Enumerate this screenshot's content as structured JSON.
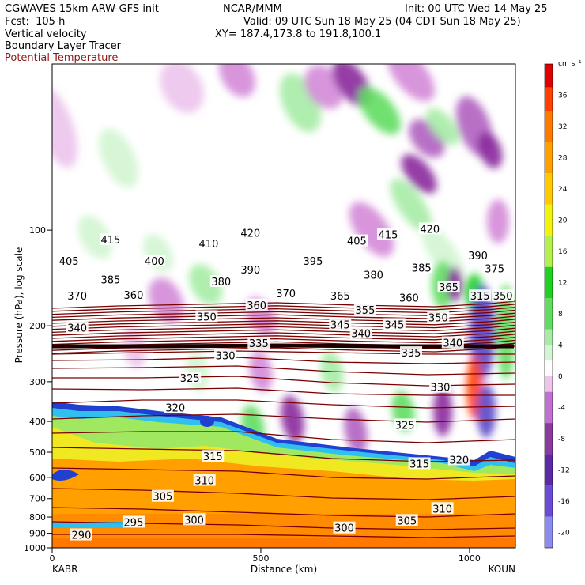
{
  "header": {
    "model": "CGWAVES 15km ARW-GFS init",
    "fcst": "Fcst:  105 h",
    "center": "NCAR/MMM",
    "init": "Init: 00 UTC Wed 14 May 25",
    "valid": "Valid: 09 UTC Sun 18 May 25 (04 CDT Sun 18 May 25)",
    "xy": "XY= 187.4,173.8 to 191.8,100.1",
    "field1": "Vertical velocity",
    "field2": "Boundary Layer Tracer",
    "field3": "Potential Temperature"
  },
  "colors": {
    "theta": "#7a0000",
    "pos_shading": [
      "#ffffff",
      "#d2f5d2",
      "#a6eca6",
      "#60dd60",
      "#1fd21f",
      "#b4f04b",
      "#f2f20f",
      "#ffc800",
      "#ffa000",
      "#ff7800",
      "#ff4000",
      "#e00000"
    ],
    "neg_shading": [
      "#ffffff",
      "#ecc4ec",
      "#d48ad8",
      "#b060c0",
      "#8a2a9c",
      "#6a1a88",
      "#5a46c8",
      "#8888ee"
    ]
  },
  "chart_data": {
    "type": "heatmap",
    "title": "Vertical velocity",
    "xlabel": "Distance (km)",
    "ylabel": "Pressure (hPa), log scale",
    "x_ticks": [
      0,
      500,
      1000
    ],
    "x_end_labels": {
      "left": "KABR",
      "right": "KOUN"
    },
    "xlim": [
      0,
      1110
    ],
    "y_ticks": [
      100,
      200,
      300,
      400,
      500,
      600,
      700,
      800,
      900,
      1000
    ],
    "ylim": [
      1000,
      30
    ],
    "y_scale": "log",
    "colorbar": {
      "units": "cm s⁻¹",
      "ticks": [
        36,
        32,
        28,
        24,
        20,
        16,
        12,
        8,
        4,
        0,
        -4,
        -8,
        -12,
        -16,
        -20
      ],
      "range": [
        -22,
        40
      ]
    },
    "theta_contour_labels": [
      {
        "label": "415",
        "x": 140,
        "p": 107
      },
      {
        "label": "410",
        "x": 375,
        "p": 110
      },
      {
        "label": "420",
        "x": 475,
        "p": 102
      },
      {
        "label": "405",
        "x": 730,
        "p": 108
      },
      {
        "label": "415",
        "x": 805,
        "p": 103
      },
      {
        "label": "420",
        "x": 905,
        "p": 99
      },
      {
        "label": "405",
        "x": 40,
        "p": 125
      },
      {
        "label": "400",
        "x": 245,
        "p": 125
      },
      {
        "label": "390",
        "x": 475,
        "p": 133
      },
      {
        "label": "395",
        "x": 625,
        "p": 125
      },
      {
        "label": "385",
        "x": 885,
        "p": 131
      },
      {
        "label": "390",
        "x": 1020,
        "p": 120
      },
      {
        "label": "375",
        "x": 1060,
        "p": 132
      },
      {
        "label": "385",
        "x": 140,
        "p": 143
      },
      {
        "label": "380",
        "x": 405,
        "p": 145
      },
      {
        "label": "380",
        "x": 770,
        "p": 138
      },
      {
        "label": "365",
        "x": 950,
        "p": 151
      },
      {
        "label": "370",
        "x": 60,
        "p": 161
      },
      {
        "label": "360",
        "x": 195,
        "p": 160
      },
      {
        "label": "370",
        "x": 560,
        "p": 158
      },
      {
        "label": "365",
        "x": 690,
        "p": 161
      },
      {
        "label": "360",
        "x": 855,
        "p": 163
      },
      {
        "label": "315",
        "x": 1025,
        "p": 161
      },
      {
        "label": "350",
        "x": 1080,
        "p": 161
      },
      {
        "label": "360",
        "x": 490,
        "p": 172
      },
      {
        "label": "350",
        "x": 370,
        "p": 187
      },
      {
        "label": "355",
        "x": 750,
        "p": 178
      },
      {
        "label": "350",
        "x": 925,
        "p": 188
      },
      {
        "label": "345",
        "x": 690,
        "p": 198
      },
      {
        "label": "345",
        "x": 820,
        "p": 198
      },
      {
        "label": "340",
        "x": 60,
        "p": 203
      },
      {
        "label": "340",
        "x": 740,
        "p": 211
      },
      {
        "label": "340",
        "x": 960,
        "p": 226
      },
      {
        "label": "335",
        "x": 495,
        "p": 227
      },
      {
        "label": "335",
        "x": 860,
        "p": 243
      },
      {
        "label": "330",
        "x": 415,
        "p": 248
      },
      {
        "label": "325",
        "x": 330,
        "p": 292
      },
      {
        "label": "330",
        "x": 930,
        "p": 312
      },
      {
        "label": "320",
        "x": 295,
        "p": 362
      },
      {
        "label": "325",
        "x": 845,
        "p": 410
      },
      {
        "label": "315",
        "x": 385,
        "p": 515
      },
      {
        "label": "315",
        "x": 880,
        "p": 543
      },
      {
        "label": "320",
        "x": 975,
        "p": 528
      },
      {
        "label": "310",
        "x": 365,
        "p": 613
      },
      {
        "label": "305",
        "x": 265,
        "p": 688
      },
      {
        "label": "310",
        "x": 935,
        "p": 752
      },
      {
        "label": "300",
        "x": 340,
        "p": 815
      },
      {
        "label": "305",
        "x": 850,
        "p": 820
      },
      {
        "label": "295",
        "x": 195,
        "p": 830
      },
      {
        "label": "290",
        "x": 70,
        "p": 910
      },
      {
        "label": "300",
        "x": 700,
        "p": 865
      }
    ]
  }
}
